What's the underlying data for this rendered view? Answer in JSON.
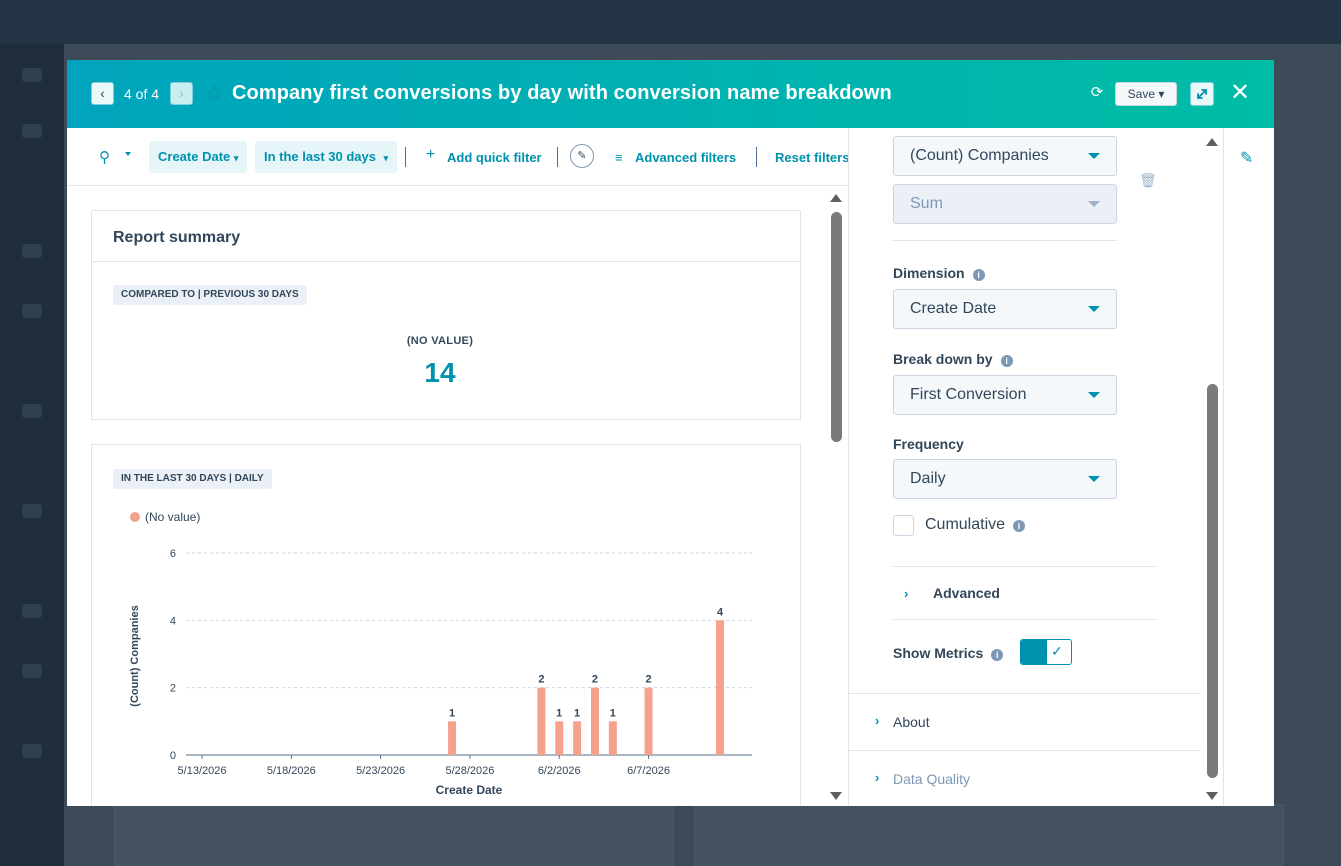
{
  "modal": {
    "pager": "4 of 4",
    "title": "Company first conversions by day with conversion name breakdown",
    "save_label": "Save"
  },
  "filters": {
    "date_property": "Create Date",
    "date_range": "In the last 30 days",
    "add_quick_filter": "Add quick filter",
    "advanced_filters": "Advanced filters",
    "reset_filters": "Reset filters"
  },
  "summary": {
    "heading": "Report summary",
    "compare_tag": "COMPARED TO | PREVIOUS 30 DAYS",
    "kpi_label": "(NO VALUE)",
    "kpi_value": "14"
  },
  "chart_card": {
    "tag": "IN THE LAST 30 DAYS | DAILY",
    "legend": "(No value)"
  },
  "chart_data": {
    "type": "bar",
    "xlabel": "Create Date",
    "ylabel": "(Count) Companies",
    "ylim": [
      0,
      6
    ],
    "yticks": [
      0,
      2,
      4,
      6
    ],
    "x_tick_labels": [
      "5/13/2026",
      "5/18/2026",
      "5/23/2026",
      "5/28/2026",
      "6/2/2026",
      "6/7/2026"
    ],
    "x_range": [
      "5/13/2026",
      "6/11/2026"
    ],
    "series": [
      {
        "name": "(No value)",
        "color": "#f5a28d",
        "points": [
          {
            "x": "5/27/2026",
            "y": 1
          },
          {
            "x": "6/1/2026",
            "y": 2
          },
          {
            "x": "6/2/2026",
            "y": 1
          },
          {
            "x": "6/3/2026",
            "y": 1
          },
          {
            "x": "6/4/2026",
            "y": 2
          },
          {
            "x": "6/5/2026",
            "y": 1
          },
          {
            "x": "6/7/2026",
            "y": 2
          },
          {
            "x": "6/11/2026",
            "y": 4
          }
        ]
      }
    ],
    "grid": true,
    "data_labels": true
  },
  "panel": {
    "measure": "(Count) Companies",
    "aggregation": "Sum",
    "dimension_label": "Dimension",
    "dimension_value": "Create Date",
    "breakdown_label": "Break down by",
    "breakdown_value": "First Conversion",
    "frequency_label": "Frequency",
    "frequency_value": "Daily",
    "cumulative_label": "Cumulative",
    "advanced_label": "Advanced",
    "show_metrics_label": "Show Metrics",
    "show_metrics_on": true,
    "about_label": "About",
    "data_quality_label": "Data Quality"
  }
}
